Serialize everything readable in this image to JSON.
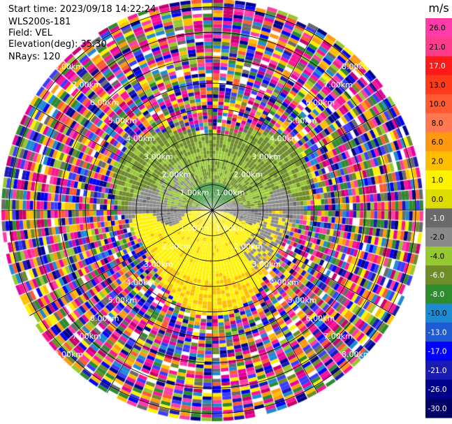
{
  "header": {
    "start_time": "Start time: 2023/09/18 14:22:24",
    "instrument": "WLS200s-181",
    "field": "Field: VEL",
    "elevation": "Elevation(deg): 35.30",
    "nrays": "NRays: 120"
  },
  "chart_data": {
    "type": "heatmap",
    "subtype": "polar-ppi",
    "units": "m/s",
    "range_rings_km": [
      1.0,
      2.0,
      3.0,
      4.0,
      5.0,
      6.0,
      7.0,
      8.0
    ],
    "ring_labels": [
      "1.00km",
      "2.00km",
      "3.00km",
      "4.00km",
      "5.00km",
      "6.00km",
      "7.00km",
      "8.00km"
    ],
    "n_rays": 120,
    "colorbar": {
      "ticks": [
        "26.0",
        "21.0",
        "17.0",
        "13.0",
        "10.0",
        "8.0",
        "6.0",
        "2.0",
        "1.0",
        "0.0",
        "-1.0",
        "-2.0",
        "-4.0",
        "-6.0",
        "-8.0",
        "-10.0",
        "-13.0",
        "-17.0",
        "-21.0",
        "-26.0",
        "-30.0"
      ],
      "boundaries": [
        30,
        26,
        21,
        17,
        13,
        10,
        8,
        6,
        2,
        1,
        0,
        -1,
        -2,
        -4,
        -6,
        -8,
        -10,
        -13,
        -17,
        -21,
        -26,
        -30
      ],
      "colors": [
        "#ff3ca8",
        "#ff3c8c",
        "#ff1a1a",
        "#ff3a1a",
        "#ff5a32",
        "#ff7850",
        "#ff9a10",
        "#ffbf00",
        "#fff200",
        "#dcdc00",
        "#6a6a6a",
        "#8a8a8a",
        "#96c832",
        "#6e8c28",
        "#2e8b2e",
        "#1e8ad2",
        "#1e5ad2",
        "#0000ff",
        "#1a1ab4",
        "#00008c",
        "#000064"
      ]
    },
    "grid": true
  }
}
